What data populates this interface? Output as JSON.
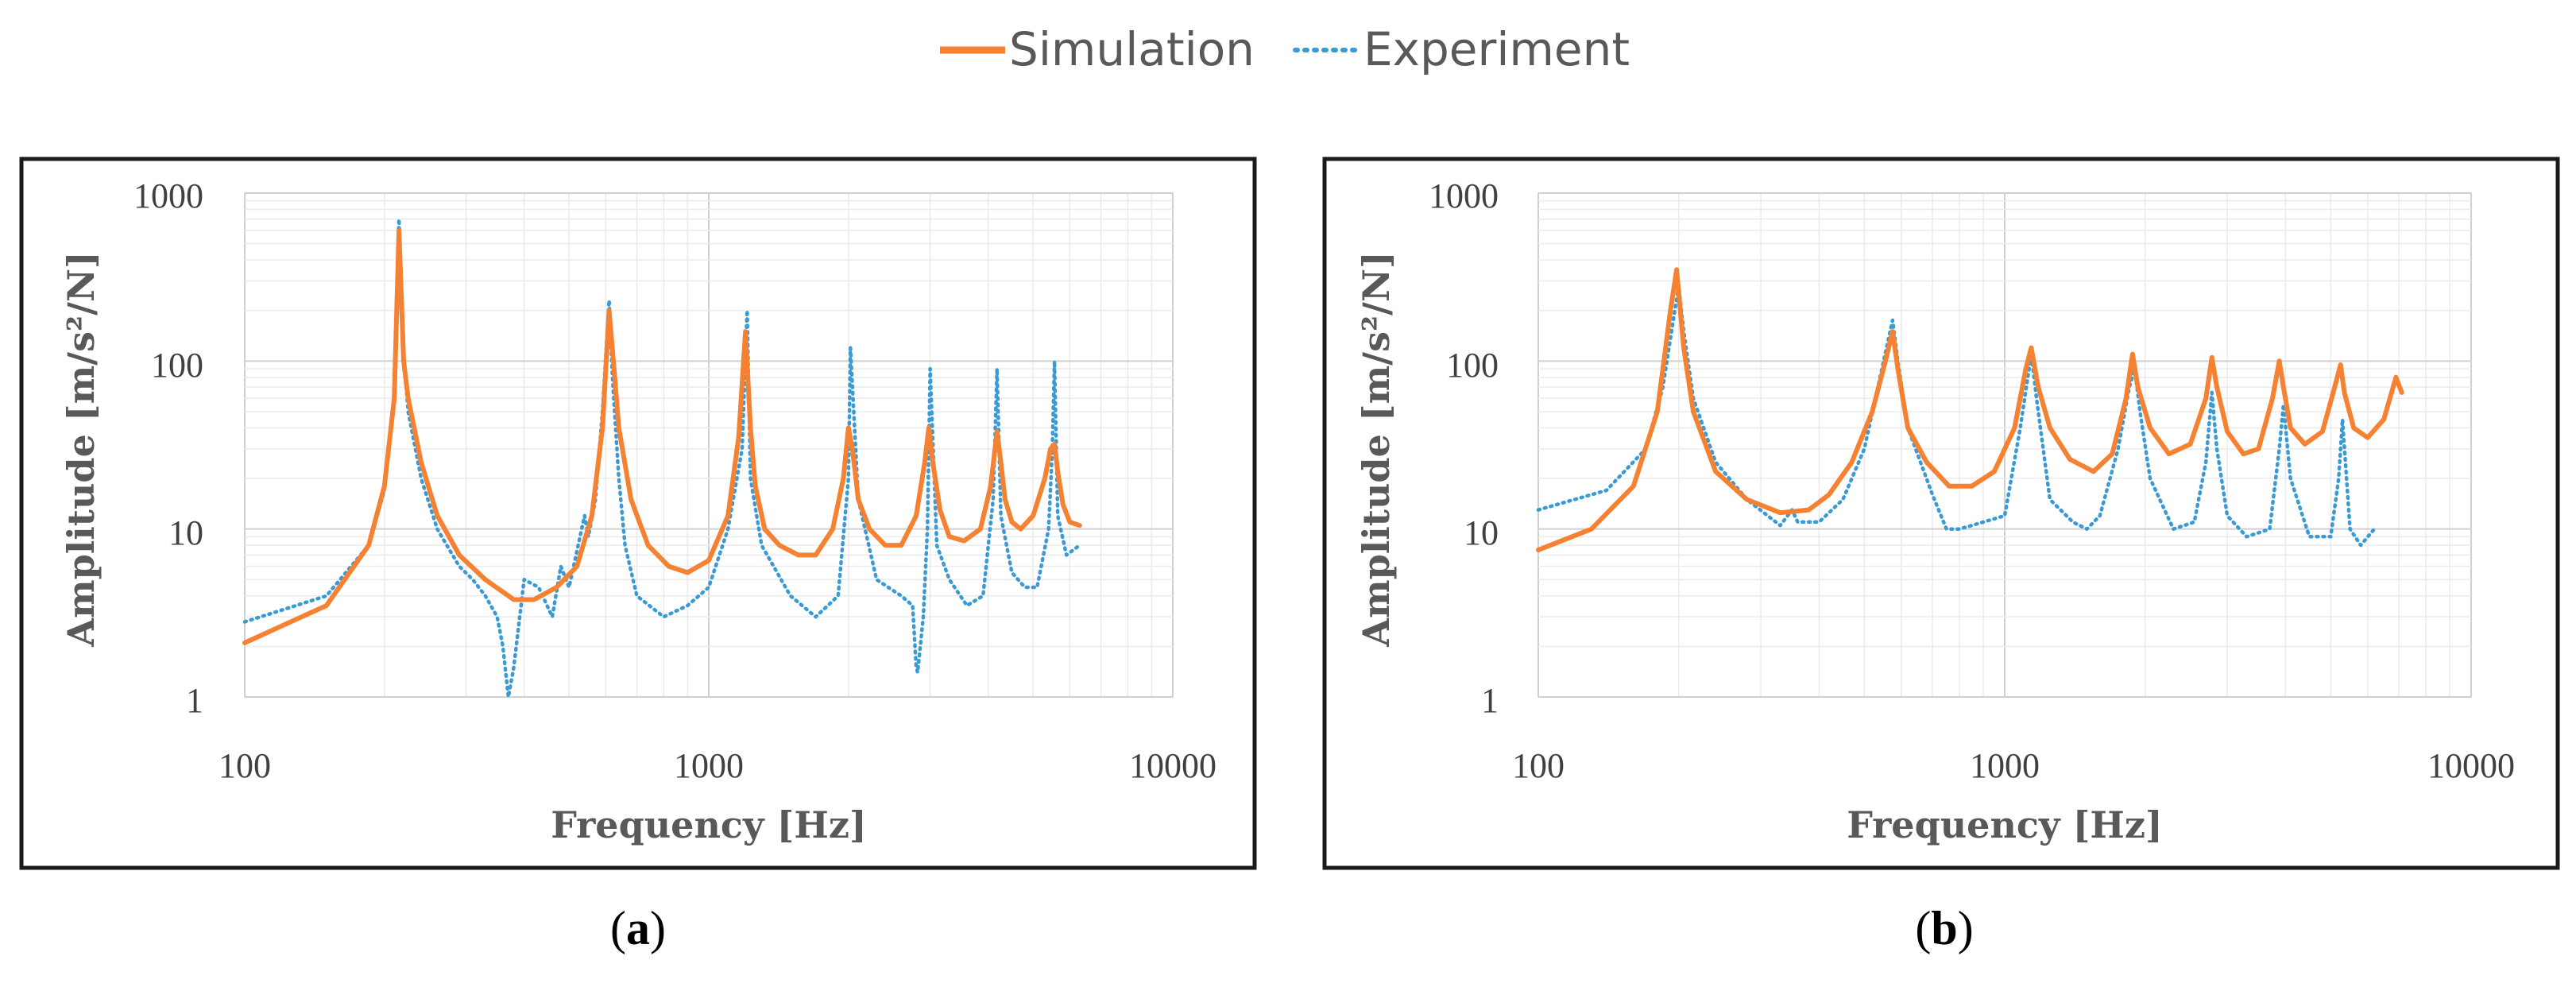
{
  "legend": {
    "simulation": "Simulation",
    "experiment": "Experiment"
  },
  "colors": {
    "simulation": "#F58232",
    "experiment": "#3A9AD4",
    "grid_major": "#D0D0D0",
    "grid_minor": "#EBEBEB",
    "frame": "#1A1A1A"
  },
  "panels": [
    {
      "label_open": "(",
      "label_letter": "a",
      "label_close": ")",
      "xlabel": "Frequency [Hz]",
      "ylabel": "Amplitude [m/s²/N]",
      "xtick_labels": [
        "100",
        "1000",
        "10000"
      ],
      "ytick_labels": [
        "1",
        "10",
        "100",
        "1000"
      ]
    },
    {
      "label_open": "(",
      "label_letter": "b",
      "label_close": ")",
      "xlabel": "Frequency [Hz]",
      "ylabel": "Amplitude [m/s²/N]",
      "xtick_labels": [
        "100",
        "1000",
        "10000"
      ],
      "ytick_labels": [
        "1",
        "10",
        "100",
        "1000"
      ]
    }
  ],
  "chart_data": [
    {
      "type": "line",
      "title": "(a)",
      "xlabel": "Frequency [Hz]",
      "ylabel": "Amplitude [m/s²/N]",
      "xscale": "log",
      "yscale": "log",
      "xlim": [
        100,
        10000
      ],
      "ylim": [
        1,
        1000
      ],
      "grid": true,
      "legend": "top-center",
      "series": [
        {
          "name": "Simulation",
          "style": "solid",
          "x": [
            100,
            150,
            185,
            200,
            210,
            215,
            220,
            225,
            240,
            260,
            290,
            330,
            380,
            420,
            470,
            520,
            560,
            590,
            610,
            625,
            640,
            680,
            740,
            820,
            900,
            1000,
            1100,
            1160,
            1200,
            1230,
            1260,
            1320,
            1420,
            1560,
            1700,
            1850,
            1950,
            2000,
            2040,
            2100,
            2220,
            2400,
            2600,
            2800,
            2920,
            2980,
            3040,
            3150,
            3300,
            3550,
            3850,
            4050,
            4180,
            4260,
            4350,
            4500,
            4700,
            5000,
            5300,
            5450,
            5560,
            5650,
            5800,
            6000,
            6300
          ],
          "y": [
            2.1,
            3.5,
            8,
            18,
            60,
            600,
            100,
            60,
            25,
            12,
            7,
            5,
            3.8,
            3.8,
            4.5,
            6,
            12,
            40,
            200,
            90,
            40,
            15,
            8,
            6,
            5.5,
            6.5,
            12,
            35,
            150,
            40,
            18,
            10,
            8,
            7,
            7,
            10,
            20,
            40,
            30,
            15,
            10,
            8,
            8,
            12,
            25,
            40,
            25,
            13,
            9,
            8.5,
            10,
            18,
            38,
            25,
            15,
            11,
            10,
            12,
            20,
            30,
            32,
            22,
            14,
            11,
            10.5
          ]
        },
        {
          "name": "Experiment",
          "style": "dotted",
          "x": [
            100,
            150,
            185,
            200,
            210,
            215,
            220,
            225,
            240,
            260,
            290,
            310,
            330,
            350,
            360,
            370,
            380,
            400,
            430,
            460,
            480,
            500,
            540,
            550,
            570,
            590,
            610,
            620,
            640,
            660,
            700,
            800,
            900,
            1000,
            1100,
            1180,
            1210,
            1230,
            1300,
            1500,
            1700,
            1900,
            2000,
            2020,
            2100,
            2300,
            2600,
            2750,
            2800,
            2820,
            2900,
            2960,
            3000,
            3100,
            3300,
            3600,
            3900,
            4100,
            4180,
            4260,
            4500,
            4800,
            5100,
            5400,
            5500,
            5560,
            5650,
            5900,
            6300
          ],
          "y": [
            2.8,
            4,
            8,
            17,
            60,
            700,
            110,
            50,
            20,
            10,
            6,
            5,
            4,
            3,
            2,
            1,
            1.5,
            5,
            4.5,
            3,
            6,
            4.5,
            12,
            9,
            15,
            50,
            230,
            80,
            20,
            8,
            4,
            3,
            3.5,
            4.5,
            10,
            30,
            200,
            20,
            8,
            4,
            3,
            4,
            20,
            120,
            15,
            5,
            4,
            3.5,
            1.5,
            1.4,
            3,
            10,
            90,
            8,
            5,
            3.5,
            4,
            15,
            90,
            12,
            5.5,
            4.5,
            4.5,
            10,
            30,
            100,
            12,
            7,
            8
          ]
        }
      ]
    },
    {
      "type": "line",
      "title": "(b)",
      "xlabel": "Frequency [Hz]",
      "ylabel": "Amplitude [m/s²/N]",
      "xscale": "log",
      "yscale": "log",
      "xlim": [
        100,
        10000
      ],
      "ylim": [
        1,
        1000
      ],
      "grid": true,
      "legend": "top-center",
      "series": [
        {
          "name": "Simulation",
          "style": "solid",
          "x": [
            100,
            130,
            160,
            180,
            192,
            198,
            205,
            215,
            240,
            280,
            330,
            380,
            420,
            470,
            520,
            555,
            575,
            590,
            620,
            680,
            760,
            850,
            950,
            1050,
            1110,
            1140,
            1180,
            1250,
            1380,
            1550,
            1700,
            1820,
            1880,
            1930,
            2050,
            2250,
            2500,
            2700,
            2780,
            2850,
            3000,
            3250,
            3500,
            3750,
            3880,
            3960,
            4100,
            4400,
            4800,
            5100,
            5250,
            5350,
            5600,
            6000,
            6500,
            6900,
            7100
          ],
          "y": [
            7.5,
            10,
            18,
            50,
            200,
            350,
            120,
            50,
            22,
            15,
            12.5,
            13,
            16,
            25,
            50,
            100,
            150,
            90,
            40,
            25,
            18,
            18,
            22,
            40,
            90,
            120,
            70,
            40,
            26,
            22,
            28,
            60,
            110,
            70,
            40,
            28,
            32,
            60,
            105,
            70,
            38,
            28,
            30,
            60,
            100,
            70,
            40,
            32,
            38,
            70,
            95,
            65,
            40,
            35,
            45,
            80,
            65
          ]
        },
        {
          "name": "Experiment",
          "style": "dotted",
          "x": [
            100,
            140,
            170,
            185,
            195,
            200,
            205,
            215,
            240,
            280,
            330,
            350,
            360,
            400,
            450,
            500,
            550,
            575,
            590,
            620,
            700,
            750,
            800,
            900,
            1000,
            1080,
            1140,
            1170,
            1250,
            1400,
            1500,
            1600,
            1750,
            1850,
            1900,
            1950,
            2050,
            2300,
            2550,
            2700,
            2780,
            2850,
            3000,
            3300,
            3700,
            3880,
            3960,
            4100,
            4500,
            5000,
            5200,
            5300,
            5500,
            5800,
            6200
          ],
          "y": [
            13,
            17,
            30,
            70,
            180,
            280,
            150,
            60,
            25,
            15,
            10.5,
            13,
            11,
            11,
            15,
            30,
            100,
            175,
            100,
            40,
            16,
            10,
            10,
            11,
            12,
            40,
            110,
            60,
            15,
            11,
            10,
            12,
            30,
            70,
            90,
            50,
            20,
            10,
            11,
            25,
            65,
            30,
            12,
            9,
            10,
            30,
            55,
            20,
            9,
            9,
            20,
            45,
            10,
            8,
            10
          ]
        }
      ]
    }
  ]
}
